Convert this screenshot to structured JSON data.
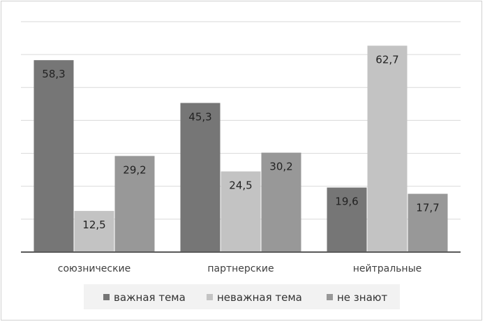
{
  "chart_data": {
    "type": "bar",
    "categories": [
      "союзнические",
      "партнерские",
      "нейтральные"
    ],
    "series": [
      {
        "name": "важная тема",
        "values": [
          58.3,
          45.3,
          19.6
        ],
        "color": "#767676"
      },
      {
        "name": "неважная тема",
        "values": [
          12.5,
          24.5,
          62.7
        ],
        "color": "#c3c3c3"
      },
      {
        "name": "не знают",
        "values": [
          29.2,
          30.2,
          17.7
        ],
        "color": "#989898"
      }
    ],
    "title": "",
    "xlabel": "",
    "ylabel": "",
    "ylim": [
      0,
      70
    ],
    "grid": true,
    "legend": "bottom",
    "gridline_color": "#d9d9d9",
    "axis_color": "#595959"
  }
}
